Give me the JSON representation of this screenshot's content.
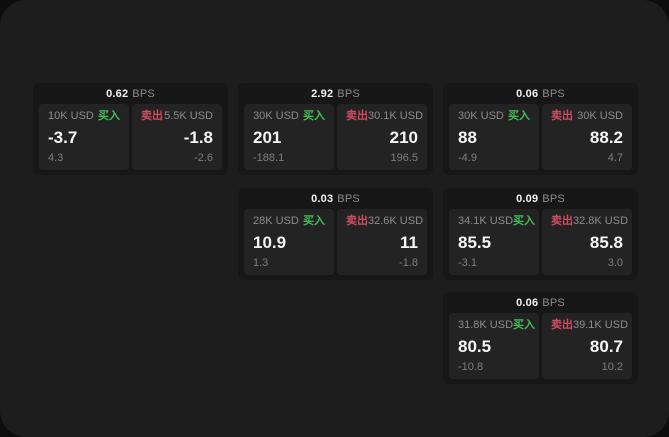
{
  "labels": {
    "bps_unit": "BPS",
    "buy": "买入",
    "sell": "卖出"
  },
  "colors": {
    "screen_bg": "#1d1d1d",
    "outer_bg": "#0d0d0d",
    "card_bg": "#171717",
    "panel_bg": "#232323",
    "buy_green": "#3fbf57",
    "sell_red": "#cf4b60",
    "text_primary": "#f5f5f5",
    "text_secondary": "#8c8c8c"
  },
  "cards": [
    {
      "bps": "0.62",
      "buy": {
        "amount": "10K USD",
        "price": "-3.7",
        "delta": "4.3"
      },
      "sell": {
        "amount": "5.5K USD",
        "price": "-1.8",
        "delta": "-2.6"
      }
    },
    {
      "bps": "2.92",
      "buy": {
        "amount": "30K USD",
        "price": "201",
        "delta": "-188.1"
      },
      "sell": {
        "amount": "30.1K USD",
        "price": "210",
        "delta": "196.5"
      }
    },
    {
      "bps": "0.06",
      "buy": {
        "amount": "30K USD",
        "price": "88",
        "delta": "-4.9"
      },
      "sell": {
        "amount": "30K USD",
        "price": "88.2",
        "delta": "4.7"
      }
    },
    {
      "bps": "0.03",
      "buy": {
        "amount": "28K USD",
        "price": "10.9",
        "delta": "1.3"
      },
      "sell": {
        "amount": "32.6K USD",
        "price": "11",
        "delta": "-1.8"
      }
    },
    {
      "bps": "0.09",
      "buy": {
        "amount": "34.1K USD",
        "price": "85.5",
        "delta": "-3.1"
      },
      "sell": {
        "amount": "32.8K USD",
        "price": "85.8",
        "delta": "3.0"
      }
    },
    {
      "bps": "0.06",
      "buy": {
        "amount": "31.8K USD",
        "price": "80.5",
        "delta": "-10.8"
      },
      "sell": {
        "amount": "39.1K USD",
        "price": "80.7",
        "delta": "10.2"
      }
    }
  ]
}
